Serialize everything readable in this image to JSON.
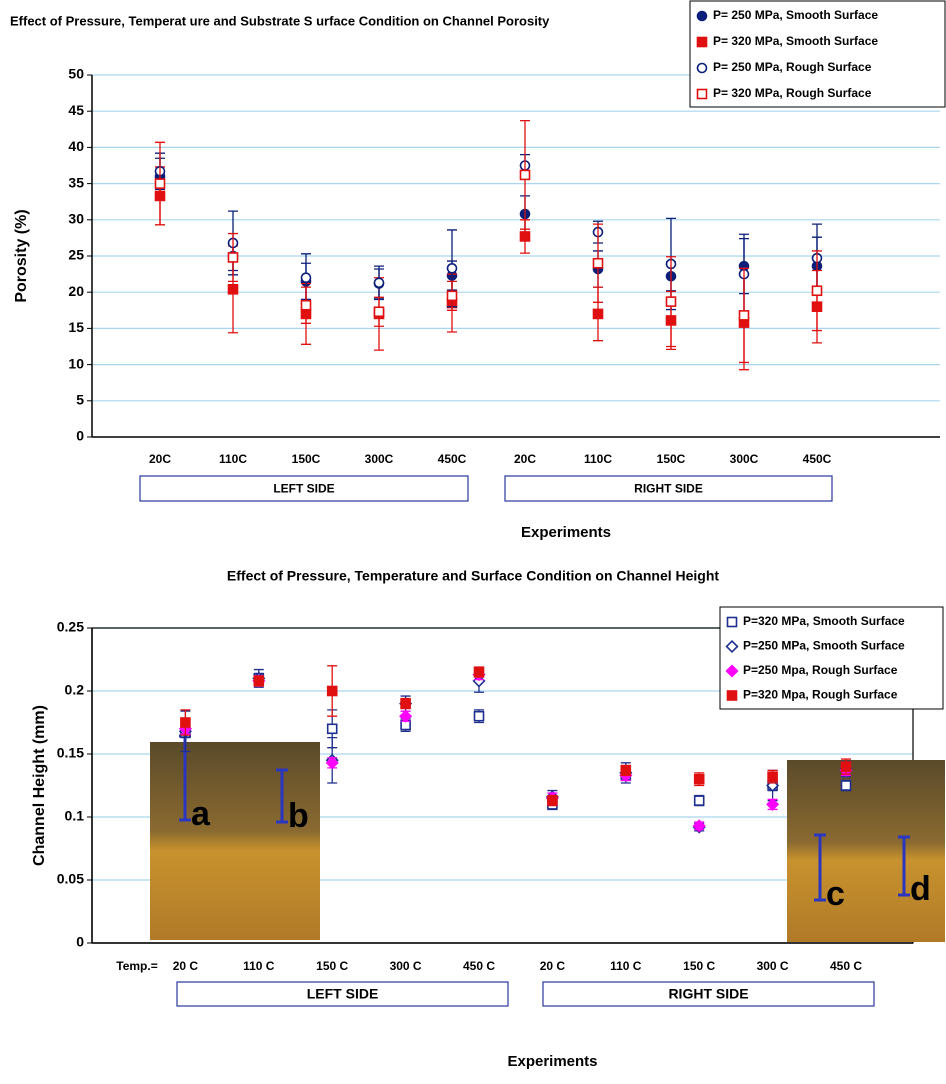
{
  "chart_data": [
    {
      "type": "scatter",
      "title": "Effect of Pressure, Temperat ure and Substrate S urface Condition on Channel Porosity",
      "x_label": "Experiments",
      "y_label": "Porosity (%)",
      "categories": [
        "20C",
        "110C",
        "150C",
        "300C",
        "450C",
        "20C",
        "110C",
        "150C",
        "300C",
        "450C"
      ],
      "groups": [
        "LEFT SIDE",
        "RIGHT SIDE"
      ],
      "ylim": [
        0,
        50
      ],
      "yticks": [
        0,
        5,
        10,
        15,
        20,
        25,
        30,
        35,
        40,
        45,
        50
      ],
      "grid": true,
      "legend": "upper right",
      "series": [
        {
          "name": "P= 250 MPa, Smooth Surface",
          "color": "#0b1f7a",
          "marker": "circle",
          "filled": true,
          "values": [
            36,
            25,
            21.5,
            21.2,
            22.3,
            30.8,
            23.2,
            22.2,
            23.6,
            23.6
          ],
          "errors": [
            2.5,
            2,
            2.5,
            2,
            2,
            2.5,
            2.5,
            2,
            3.8,
            4
          ]
        },
        {
          "name": "P= 320 MPa, Smooth Surface",
          "color": "#e01010",
          "marker": "square",
          "filled": true,
          "values": [
            33.3,
            20.4,
            17,
            17,
            18.5,
            27.7,
            17,
            16.1,
            15.8,
            18
          ],
          "errors": [
            4,
            6,
            4.2,
            5,
            4,
            2.3,
            3.7,
            4,
            6.5,
            5
          ]
        },
        {
          "name": "P= 250 MPa, Rough Surface",
          "color": "#0b1f7a",
          "marker": "circle",
          "filled": false,
          "values": [
            36.7,
            26.8,
            22,
            21.3,
            23.3,
            37.5,
            28.3,
            23.9,
            22.5,
            24.7
          ],
          "errors": [
            2.5,
            4.4,
            3.3,
            2.3,
            5.3,
            1.5,
            1.5,
            6.3,
            5.5,
            4.7
          ]
        },
        {
          "name": "P= 320 MPa, Rough Surface",
          "color": "#e01010",
          "marker": "square",
          "filled": false,
          "values": [
            35,
            24.8,
            18.2,
            17.3,
            19.5,
            36.2,
            24,
            18.7,
            16.8,
            20.2
          ],
          "errors": [
            5.7,
            3.3,
            2.5,
            2,
            2,
            7.5,
            5.4,
            6.2,
            6.5,
            5.5
          ]
        }
      ]
    },
    {
      "type": "scatter",
      "title": "Effect of Pressure, Temperature and Surface Condition on Channel Height",
      "x_label": "Experiments",
      "y_label": "Channel Height (mm)",
      "x_prefix": "Temp.=",
      "categories": [
        "20 C",
        "110 C",
        "150 C",
        "300 C",
        "450 C",
        "20 C",
        "110 C",
        "150 C",
        "300 C",
        "450 C"
      ],
      "groups": [
        "LEFT SIDE",
        "RIGHT SIDE"
      ],
      "annotations": [
        "a",
        "b",
        "c",
        "d"
      ],
      "ylim": [
        0,
        0.25
      ],
      "yticks": [
        0,
        0.05,
        0.1,
        0.15,
        0.2,
        0.25
      ],
      "grid": true,
      "legend": "upper right",
      "series": [
        {
          "name": "P=320 MPa, Smooth Surface",
          "color": "#1f2f8f",
          "marker": "square",
          "filled": false,
          "values": [
            0.167,
            0.21,
            0.17,
            0.173,
            0.18,
            0.11,
            0.133,
            0.113,
            0.125,
            0.125
          ],
          "errors": [
            0.004,
            0.004,
            0.015,
            0.005,
            0.005,
            0.004,
            0.004,
            0.004,
            0.004,
            0.004
          ]
        },
        {
          "name": "P=250 MPa, Smooth Surface",
          "color": "#1f2f8f",
          "marker": "diamond",
          "filled": false,
          "values": [
            0.168,
            0.21,
            0.145,
            0.19,
            0.208,
            0.116,
            0.135,
            0.092,
            0.125,
            0.138
          ],
          "errors": [
            0.016,
            0.007,
            0.018,
            0.006,
            0.009,
            0.005,
            0.008,
            0.003,
            0.012,
            0.006
          ]
        },
        {
          "name": "P=250 Mpa, Rough Surface",
          "color": "#ff00ff",
          "marker": "diamond",
          "filled": true,
          "values": [
            0.17,
            0.208,
            0.143,
            0.18,
            0.213,
            0.115,
            0.133,
            0.093,
            0.11,
            0.137
          ],
          "errors": [
            0.004,
            0.004,
            0.004,
            0.004,
            0.004,
            0.004,
            0.004,
            0.003,
            0.004,
            0.004
          ]
        },
        {
          "name": "P=320 Mpa, Rough Surface",
          "color": "#e01010",
          "marker": "square",
          "filled": true,
          "values": [
            0.175,
            0.208,
            0.2,
            0.19,
            0.215,
            0.113,
            0.137,
            0.13,
            0.132,
            0.14
          ],
          "errors": [
            0.01,
            0.004,
            0.02,
            0.004,
            0.004,
            0.004,
            0.004,
            0.005,
            0.005,
            0.006
          ]
        }
      ]
    }
  ]
}
